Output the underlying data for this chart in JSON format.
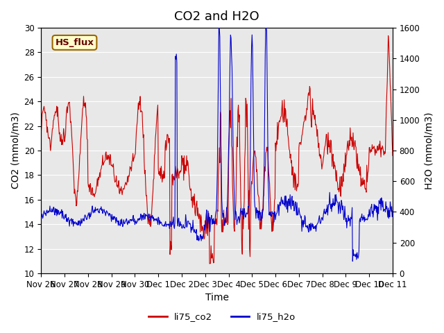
{
  "title": "CO2 and H2O",
  "xlabel": "Time",
  "ylabel_left": "CO2 (mmol/m3)",
  "ylabel_right": "H2O (mmol/m3)",
  "xlim_days": [
    0,
    15
  ],
  "ylim_left": [
    10,
    30
  ],
  "ylim_right": [
    0,
    1600
  ],
  "yticks_left": [
    10,
    12,
    14,
    16,
    18,
    20,
    22,
    24,
    26,
    28,
    30
  ],
  "yticks_right": [
    0,
    200,
    400,
    600,
    800,
    1000,
    1200,
    1400,
    1600
  ],
  "xtick_labels": [
    "Nov 26",
    "Nov 27",
    "Nov 28",
    "Nov 29",
    "Nov 30",
    "Dec 1",
    "Dec 2",
    "Dec 3",
    "Dec 4",
    "Dec 5",
    "Dec 6",
    "Dec 7",
    "Dec 8",
    "Dec 9",
    "Dec 10",
    "Dec 11"
  ],
  "co2_color": "#cc0000",
  "h2o_color": "#0000cc",
  "legend_labels": [
    "li75_co2",
    "li75_h2o"
  ],
  "background_color": "#e8e8e8",
  "plot_bg_color": "#e8e8e8",
  "annotation_text": "HS_flux",
  "annotation_bg": "#ffffcc",
  "annotation_border": "#996600",
  "grid_color": "#ffffff",
  "title_fontsize": 13,
  "axis_fontsize": 10,
  "tick_fontsize": 8.5
}
